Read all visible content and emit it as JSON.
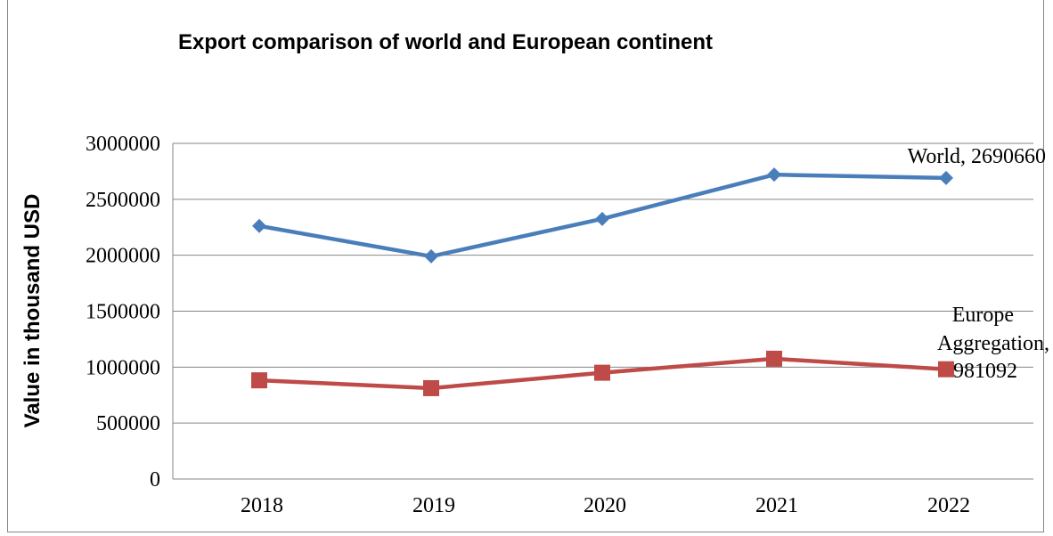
{
  "chart_data": {
    "type": "line",
    "title": "Export comparison of world and European continent",
    "ylabel": "Value in thousand USD",
    "xlabel": "",
    "categories": [
      "2018",
      "2019",
      "2020",
      "2021",
      "2022"
    ],
    "ylim": [
      0,
      3000000
    ],
    "yticks": [
      0,
      500000,
      1000000,
      1500000,
      2000000,
      2500000,
      3000000
    ],
    "ytick_labels": [
      "0",
      "500000",
      "1000000",
      "1500000",
      "2000000",
      "2500000",
      "3000000"
    ],
    "grid": "horizontal",
    "series": [
      {
        "name": "World",
        "values": [
          2262000,
          1990000,
          2325000,
          2720000,
          2690660
        ],
        "color": "#4A7EBB",
        "marker": "diamond",
        "data_label": "World, 2690660"
      },
      {
        "name": "Europe Aggregation",
        "values": [
          882000,
          812000,
          950000,
          1075000,
          981092
        ],
        "color": "#BE4B48",
        "marker": "square",
        "data_label_lines": [
          "Europe",
          "Aggregation,",
          "981092"
        ]
      }
    ]
  }
}
